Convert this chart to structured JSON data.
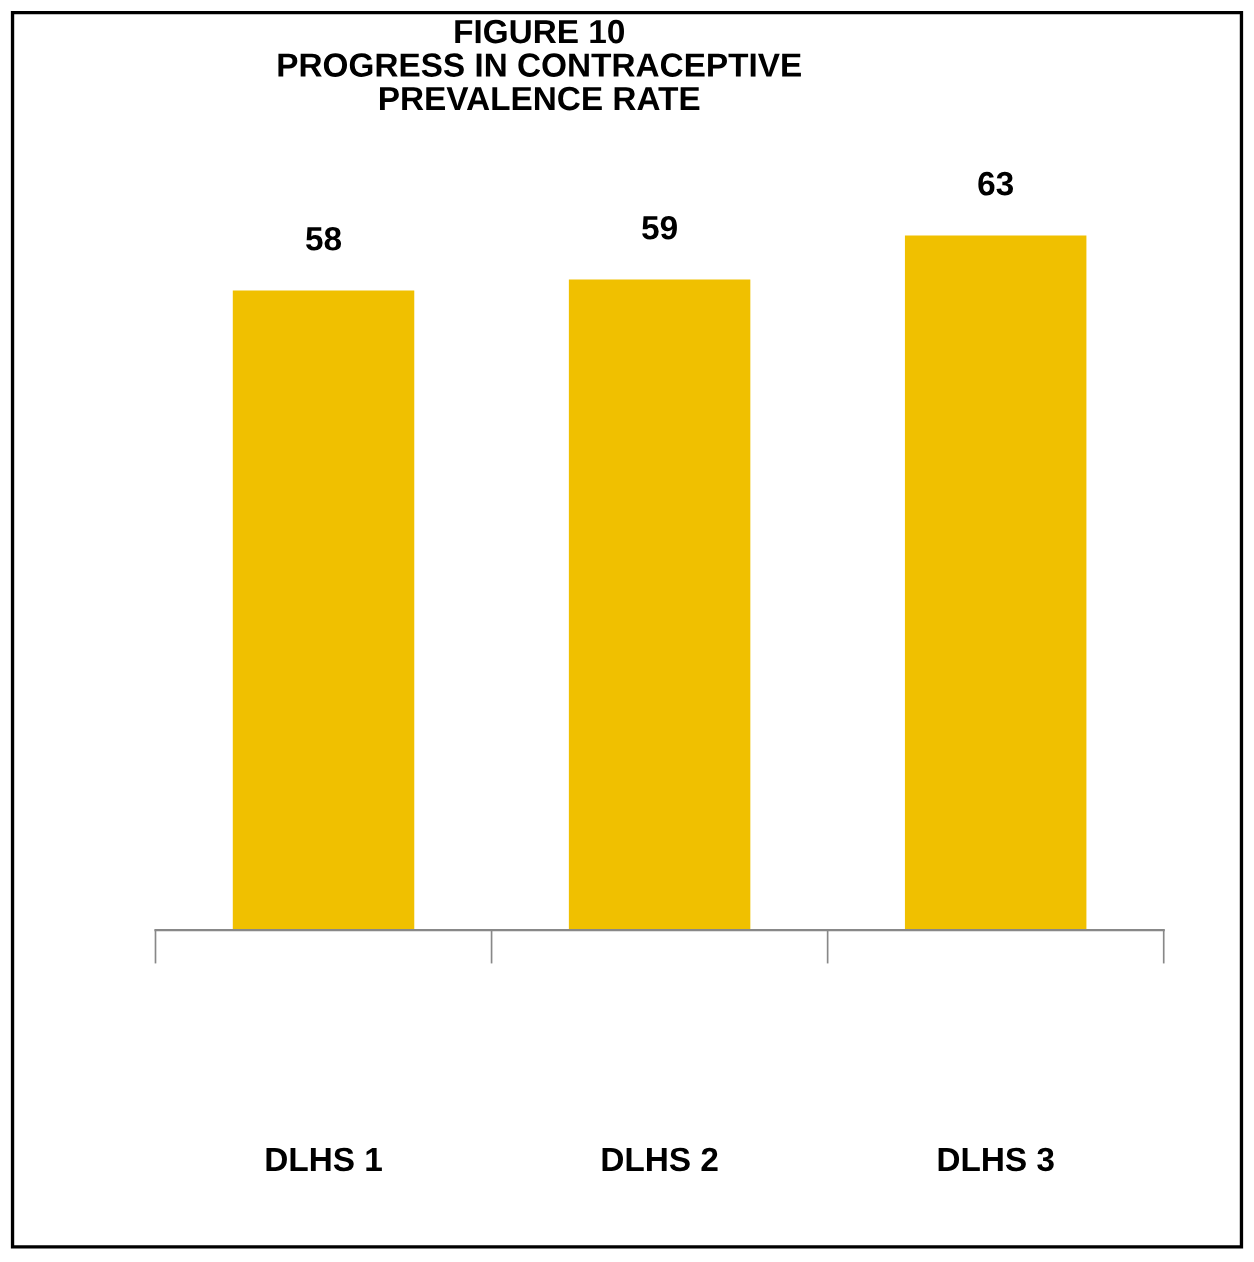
{
  "chart_data": {
    "type": "bar",
    "title": "FIGURE 10\nPROGRESS IN CONTRACEPTIVE\nPREVALENCE RATE",
    "categories": [
      "DLHS 1",
      "DLHS 2",
      "DLHS 3"
    ],
    "values": [
      58,
      59,
      63
    ],
    "color": "#f0c000",
    "data_labels": true,
    "grid": false,
    "legend": false
  }
}
